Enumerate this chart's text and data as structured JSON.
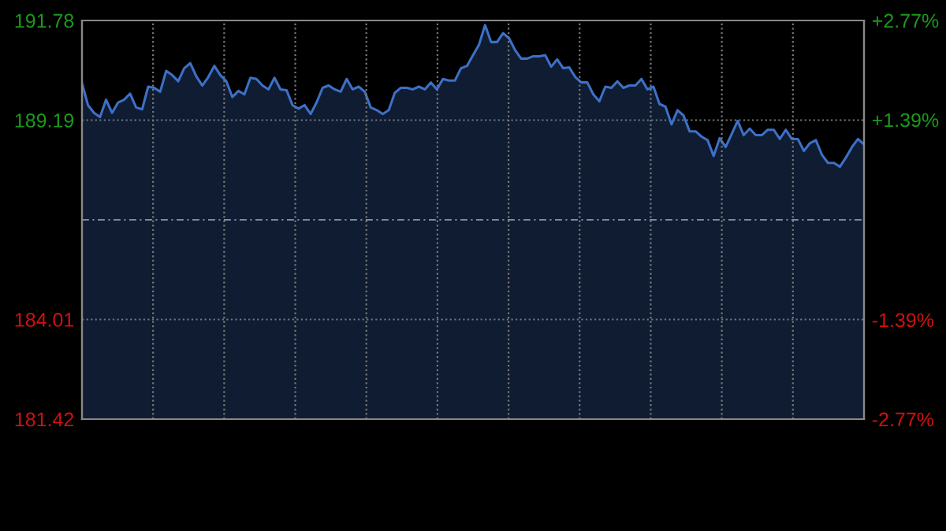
{
  "chart_data": {
    "type": "area",
    "categories": [
      null,
      null,
      null,
      null,
      null,
      null,
      null,
      null,
      null,
      null,
      null,
      null,
      null,
      null,
      null,
      null,
      null,
      null,
      null,
      null,
      null,
      null,
      null,
      null,
      null,
      null,
      null,
      null,
      null,
      null,
      null,
      null,
      null,
      null,
      null,
      null,
      null,
      null,
      null,
      null,
      null,
      null,
      null,
      null,
      null,
      null,
      null,
      null,
      null,
      null,
      null,
      null,
      null,
      null,
      null,
      null,
      null,
      null,
      null,
      null,
      null,
      null,
      null,
      null,
      null,
      null,
      null,
      null,
      null,
      null,
      null,
      null,
      null,
      null,
      null,
      null,
      null,
      null,
      null,
      null,
      null,
      null,
      null,
      null,
      null,
      null,
      null,
      null,
      null,
      null,
      null,
      null,
      null,
      null,
      null,
      null,
      null,
      null,
      null,
      null,
      null,
      null,
      null,
      null,
      null,
      null,
      null,
      null,
      null,
      null,
      null,
      null,
      null,
      null,
      null,
      null,
      null,
      null,
      null,
      null,
      null,
      null,
      null,
      null,
      null,
      null,
      null,
      null,
      null,
      null,
      null
    ],
    "series": [
      {
        "color": "#3d70c8",
        "values": [
          190.15,
          189.58,
          189.38,
          189.27,
          189.72,
          189.38,
          189.65,
          189.72,
          189.88,
          189.52,
          189.47,
          190.06,
          190.03,
          189.93,
          190.47,
          190.36,
          190.2,
          190.54,
          190.67,
          190.33,
          190.09,
          190.31,
          190.6,
          190.36,
          190.2,
          189.79,
          189.95,
          189.86,
          190.29,
          190.26,
          190.09,
          189.99,
          190.29,
          189.99,
          189.97,
          189.58,
          189.49,
          189.58,
          189.35,
          189.65,
          190.03,
          190.09,
          189.99,
          189.93,
          190.26,
          189.99,
          190.06,
          189.93,
          189.52,
          189.45,
          189.35,
          189.45,
          189.9,
          190.03,
          190.03,
          189.99,
          190.06,
          189.99,
          190.17,
          189.99,
          190.26,
          190.22,
          190.22,
          190.54,
          190.6,
          190.88,
          191.15,
          191.66,
          191.22,
          191.22,
          191.45,
          191.32,
          191.01,
          190.79,
          190.79,
          190.85,
          190.85,
          190.88,
          190.58,
          190.77,
          190.54,
          190.56,
          190.31,
          190.17,
          190.17,
          189.86,
          189.68,
          190.06,
          190.03,
          190.2,
          190.03,
          190.09,
          190.09,
          190.26,
          189.99,
          190.06,
          189.61,
          189.54,
          189.08,
          189.45,
          189.31,
          188.9,
          188.9,
          188.76,
          188.67,
          188.26,
          188.72,
          188.49,
          188.83,
          189.17,
          188.8,
          188.97,
          188.8,
          188.8,
          188.94,
          188.94,
          188.7,
          188.94,
          188.7,
          188.7,
          188.39,
          188.59,
          188.67,
          188.29,
          188.08,
          188.08,
          187.98,
          188.22,
          188.49,
          188.7,
          188.56
        ]
      }
    ],
    "ylim": [
      181.42,
      191.78
    ],
    "yticks": [
      181.42,
      184.01,
      189.19,
      191.78
    ],
    "y2lim": [
      -2.77,
      2.77
    ],
    "y2ticks": [
      {
        "value": -2.77,
        "label": "-2.77%"
      },
      {
        "value": -1.39,
        "label": "-1.39%"
      },
      {
        "value": 1.39,
        "label": "+1.39%"
      },
      {
        "value": 2.77,
        "label": "+2.77%"
      }
    ],
    "ref_lines": [
      {
        "axis": "y",
        "value": 186.6,
        "label": null,
        "line_style": "dashed"
      }
    ],
    "grid": true,
    "tick_labels": "y"
  }
}
